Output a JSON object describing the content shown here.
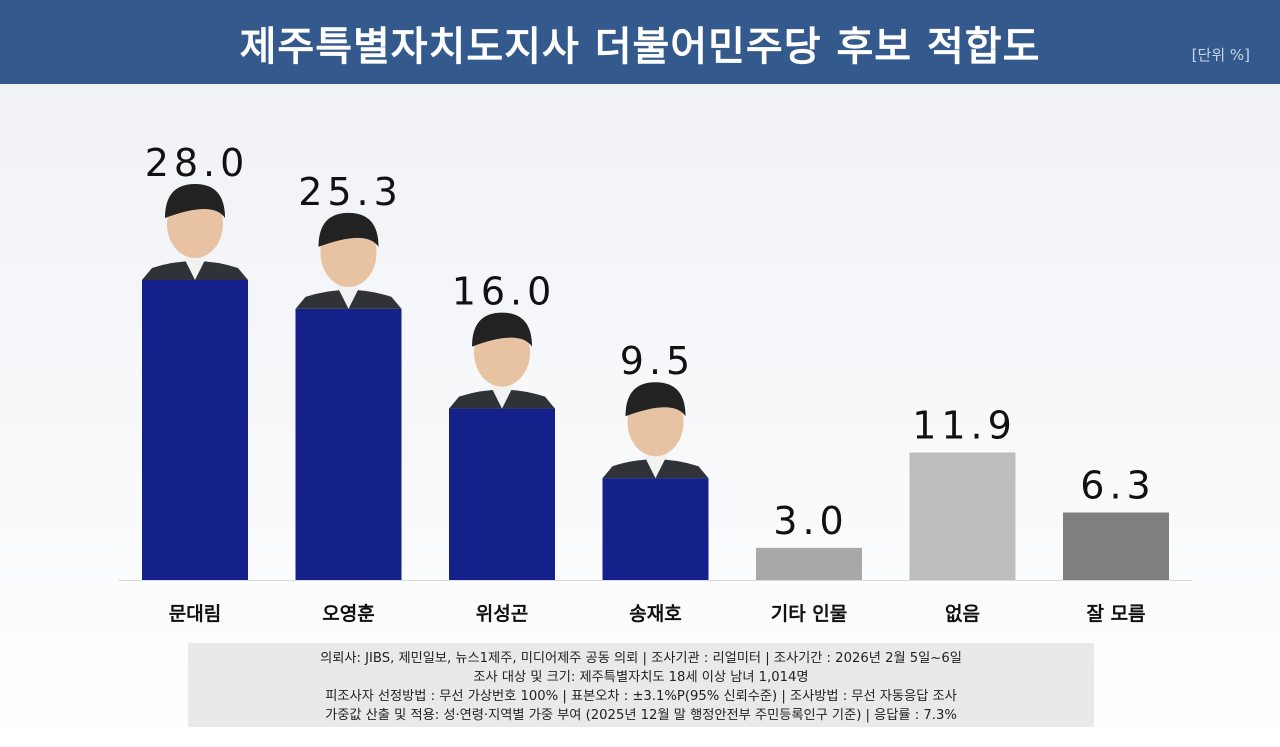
{
  "header": {
    "title": "제주특별자치도지사 더불어민주당 후보 적합도",
    "unit": "[단위 %]"
  },
  "colors": {
    "header_bg": "#33598d",
    "candidate_bar": "#14218a",
    "other_bar": "#a8a8a8",
    "none_bar": "#bdbdbd",
    "dontknow_bar": "#7f7f7f"
  },
  "chart_data": {
    "type": "bar",
    "title": "제주특별자치도지사 더불어민주당 후보 적합도",
    "unit": "[단위 %]",
    "categories": [
      "문대림",
      "오영훈",
      "위성곤",
      "송재호",
      "기타 인물",
      "없음",
      "잘 모름"
    ],
    "values": [
      28.0,
      25.3,
      16.0,
      9.5,
      3.0,
      11.9,
      6.3
    ],
    "value_labels": [
      "28.0",
      "25.3",
      "16.0",
      "9.5",
      "3.0",
      "11.9",
      "6.3"
    ],
    "bar_colors": [
      "#14218a",
      "#14218a",
      "#14218a",
      "#14218a",
      "#a8a8a8",
      "#bdbdbd",
      "#7f7f7f"
    ],
    "has_photo": [
      true,
      true,
      true,
      true,
      false,
      false,
      false
    ],
    "ylim": [
      0,
      28.0
    ],
    "grid": false,
    "legend": "none"
  },
  "footnote": {
    "lines": [
      "의뢰사: JIBS, 제민일보,  뉴스1제주,  미디어제주  공동  의뢰 | 조사기관 : 리얼미터  |  조사기간 : 2026년  2월  5일~6일",
      "조사 대상 및 크기: 제주특별자치도  18세 이상 남녀 1,014명",
      "피조사자  선정방법 : 무선  가상번호  100% | 표본오차 : ±3.1%P(95%  신뢰수준)  | 조사방법 : 무선  자동응답  조사",
      "가중값  산출 및 적용: 성·연령·지역별  가중  부여 (2025년  12월  말  행정안전부  주민등록인구  기준) | 응답률 : 7.3%"
    ]
  }
}
